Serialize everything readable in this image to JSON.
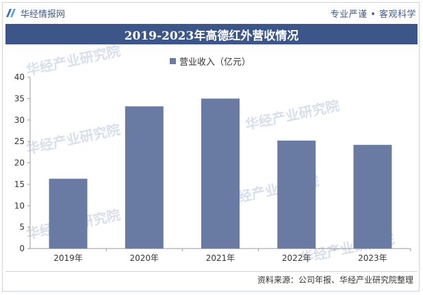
{
  "header": {
    "brand": "华经情报网",
    "slogan": "专业严谨 • 客观科学"
  },
  "footer": {
    "source": "资料来源：公司年报、华经产业研究院整理"
  },
  "watermark_text": "华经产业研究院",
  "colors": {
    "bar": "#6a7ba3",
    "title_bg": "#3d5689",
    "brand_text": "#3f5a8a"
  },
  "chart_data": {
    "type": "bar",
    "title": "2019-2023年高德红外营收情况",
    "categories": [
      "2019年",
      "2020年",
      "2021年",
      "2022年",
      "2023年"
    ],
    "series": [
      {
        "name": "营业收入（亿元）",
        "values": [
          16.3,
          33.2,
          35.0,
          25.2,
          24.2
        ]
      }
    ],
    "ylim": [
      0,
      40
    ],
    "yticks": [
      0,
      5,
      10,
      15,
      20,
      25,
      30,
      35,
      40
    ],
    "grid": false,
    "legend_position": "top-center"
  }
}
